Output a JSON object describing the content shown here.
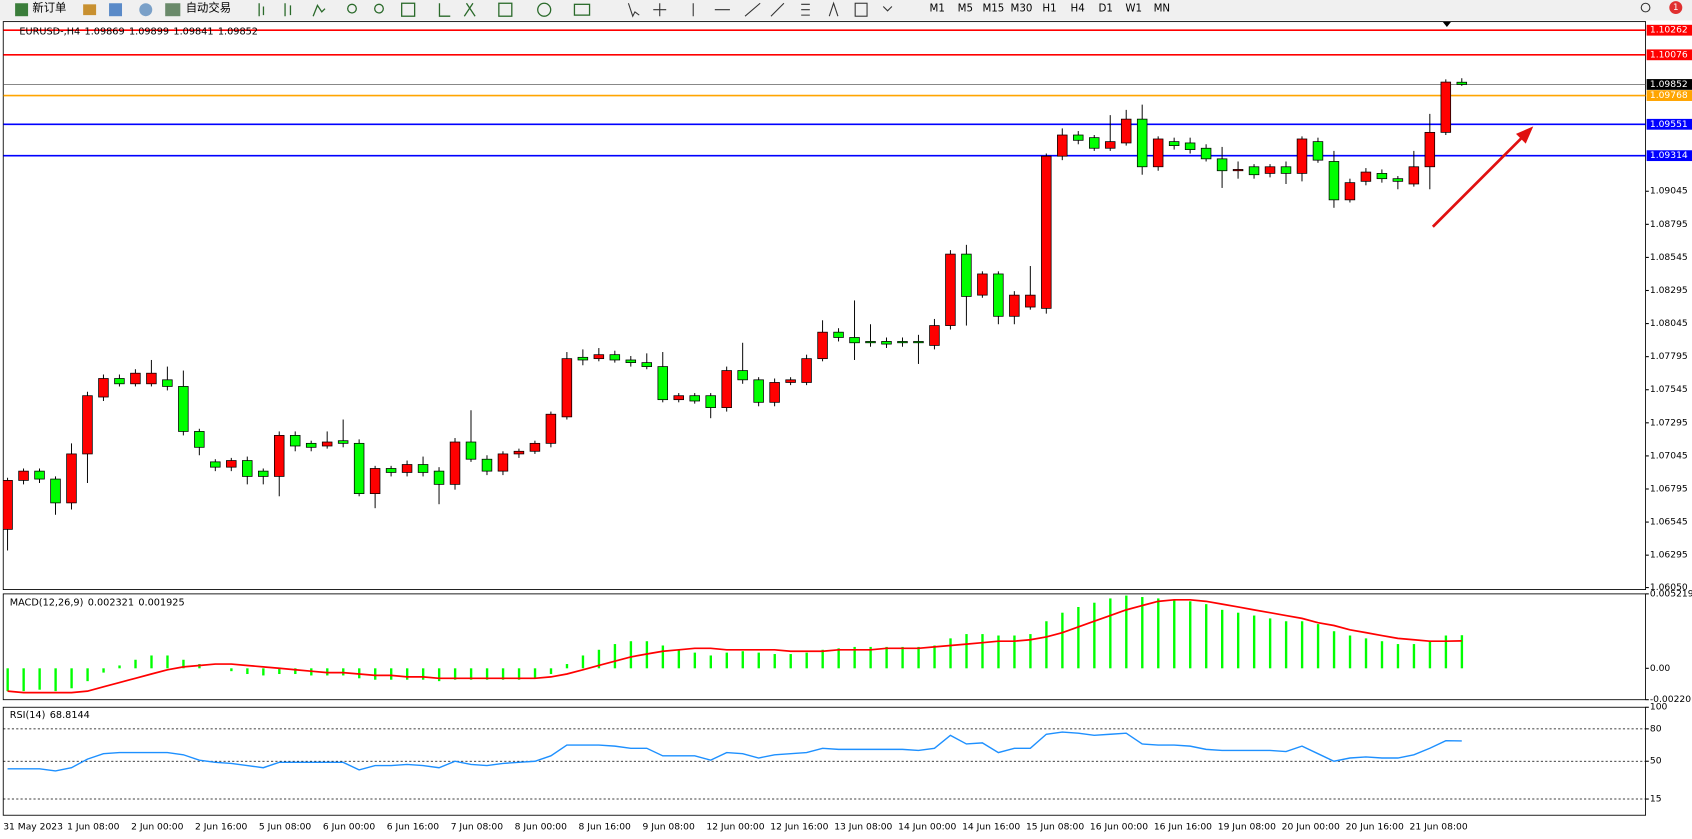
{
  "toolbar": {
    "new_order": "新订单",
    "auto_trading": "自动交易",
    "timeframes": [
      "M1",
      "M5",
      "M15",
      "M30",
      "H1",
      "H4",
      "D1",
      "W1",
      "MN"
    ],
    "notifications": "1"
  },
  "chart_data": [
    {
      "type": "candlestick",
      "title": "EURUSD-,H4",
      "ohlc": [
        1.09869,
        1.09899,
        1.09841,
        1.09852
      ],
      "up_color": "#ff0000",
      "down_color": "#00ff00",
      "categories": [
        "31 May 2023",
        null,
        null,
        null,
        "1 Jun 08:00",
        null,
        null,
        null,
        "2 Jun 00:00",
        null,
        null,
        null,
        "2 Jun 16:00",
        null,
        null,
        null,
        "5 Jun 08:00",
        null,
        null,
        null,
        "6 Jun 00:00",
        null,
        null,
        null,
        "6 Jun 16:00",
        null,
        null,
        null,
        "7 Jun 08:00",
        null,
        null,
        null,
        "8 Jun 00:00",
        null,
        null,
        null,
        "8 Jun 16:00",
        null,
        null,
        null,
        "9 Jun 08:00",
        null,
        null,
        null,
        "12 Jun 00:00",
        null,
        null,
        null,
        "12 Jun 16:00",
        null,
        null,
        null,
        "13 Jun 08:00",
        null,
        null,
        null,
        "14 Jun 00:00",
        null,
        null,
        null,
        "14 Jun 16:00",
        null,
        null,
        null,
        "15 Jun 08:00",
        null,
        null,
        null,
        "16 Jun 00:00",
        null,
        null,
        null,
        "16 Jun 16:00",
        null,
        null,
        null,
        "19 Jun 08:00",
        null,
        null,
        null,
        "20 Jun 00:00",
        null,
        null,
        null,
        "20 Jun 16:00",
        null,
        null,
        null,
        "21 Jun 08:00",
        null,
        null,
        null
      ],
      "open": [
        1.0649,
        1.0686,
        1.0693,
        1.0687,
        1.0669,
        1.0706,
        1.0749,
        1.0763,
        1.0759,
        1.0759,
        1.0762,
        1.0757,
        1.0723,
        1.07,
        1.0696,
        1.0701,
        1.0693,
        1.0689,
        1.072,
        1.0714,
        1.0712,
        1.0716,
        1.0714,
        1.0676,
        1.0695,
        1.0692,
        1.0698,
        1.0693,
        1.0683,
        1.0715,
        1.0702,
        1.0693,
        1.0706,
        1.0708,
        1.0714,
        1.0734,
        1.0779,
        1.0778,
        1.0781,
        1.0777,
        1.0775,
        1.0772,
        1.0747,
        1.075,
        1.075,
        1.0741,
        1.0769,
        1.0762,
        1.0745,
        1.076,
        1.076,
        1.0778,
        1.0798,
        1.0794,
        1.0791,
        1.0791,
        1.0791,
        1.0791,
        1.0788,
        1.0803,
        1.0857,
        1.0826,
        1.0842,
        1.081,
        1.0817,
        1.0816,
        1.0931,
        1.0947,
        1.0945,
        1.0937,
        1.0941,
        1.0959,
        1.0923,
        1.0942,
        1.0941,
        1.0937,
        1.0929,
        1.092,
        1.0923,
        1.0918,
        1.0923,
        1.0918,
        1.0942,
        1.0927,
        1.0898,
        1.0912,
        1.0918,
        1.0914,
        1.091,
        1.0923,
        1.0949,
        1.09869
      ],
      "high": [
        1.0688,
        1.0695,
        1.0695,
        1.0689,
        1.0714,
        1.0753,
        1.0766,
        1.0766,
        1.077,
        1.0777,
        1.0772,
        1.0769,
        1.0725,
        1.0702,
        1.0703,
        1.0704,
        1.0695,
        1.0723,
        1.0723,
        1.0716,
        1.0723,
        1.0732,
        1.0717,
        1.0697,
        1.0697,
        1.0701,
        1.0704,
        1.0696,
        1.0718,
        1.0739,
        1.0705,
        1.0708,
        1.071,
        1.0716,
        1.0738,
        1.0783,
        1.0785,
        1.0786,
        1.0784,
        1.078,
        1.0782,
        1.0783,
        1.0752,
        1.0752,
        1.0752,
        1.0772,
        1.079,
        1.0764,
        1.0763,
        1.0764,
        1.0781,
        1.0807,
        1.0801,
        1.0822,
        1.0804,
        1.0794,
        1.0794,
        1.0796,
        1.0808,
        1.086,
        1.0864,
        1.0844,
        1.0844,
        1.0829,
        1.0848,
        1.0933,
        1.0952,
        1.095,
        1.0947,
        1.0962,
        1.0966,
        1.097,
        1.0946,
        1.0945,
        1.0945,
        1.094,
        1.0938,
        1.0927,
        1.0925,
        1.0925,
        1.0927,
        1.0946,
        1.0945,
        1.0935,
        1.0914,
        1.0922,
        1.0921,
        1.0916,
        1.0935,
        1.0963,
        1.0989,
        1.09899
      ],
      "low": [
        1.0633,
        1.0683,
        1.0684,
        1.066,
        1.0664,
        1.0684,
        1.0746,
        1.0757,
        1.0757,
        1.0757,
        1.0754,
        1.072,
        1.0705,
        1.0693,
        1.0693,
        1.0683,
        1.0683,
        1.0674,
        1.0708,
        1.0708,
        1.071,
        1.0711,
        1.0674,
        1.0665,
        1.0689,
        1.0689,
        1.0689,
        1.0668,
        1.0679,
        1.07,
        1.069,
        1.069,
        1.0703,
        1.0706,
        1.0711,
        1.0732,
        1.0773,
        1.0776,
        1.0775,
        1.0772,
        1.077,
        1.0745,
        1.0745,
        1.0744,
        1.0733,
        1.0738,
        1.0759,
        1.0742,
        1.0742,
        1.0758,
        1.0758,
        1.0776,
        1.0791,
        1.0777,
        1.0787,
        1.0786,
        1.0787,
        1.0774,
        1.0785,
        1.08,
        1.0803,
        1.0824,
        1.0804,
        1.0804,
        1.0815,
        1.0812,
        1.0928,
        1.094,
        1.0935,
        1.0935,
        1.0939,
        1.0917,
        1.092,
        1.0936,
        1.0933,
        1.0927,
        1.0907,
        1.0914,
        1.0914,
        1.0915,
        1.091,
        1.0912,
        1.0926,
        1.0892,
        1.0896,
        1.0909,
        1.0911,
        1.0906,
        1.0908,
        1.0906,
        1.0947,
        1.09841
      ],
      "close": [
        1.0686,
        1.0693,
        1.0687,
        1.0669,
        1.0706,
        1.075,
        1.0763,
        1.0759,
        1.0767,
        1.0767,
        1.0757,
        1.0723,
        1.0711,
        1.0696,
        1.0701,
        1.0689,
        1.0689,
        1.072,
        1.0712,
        1.0711,
        1.0715,
        1.0714,
        1.0676,
        1.0695,
        1.0692,
        1.0698,
        1.0692,
        1.0683,
        1.0715,
        1.0702,
        1.0693,
        1.0706,
        1.0708,
        1.0714,
        1.0736,
        1.0778,
        1.0777,
        1.0781,
        1.0777,
        1.0775,
        1.0772,
        1.0747,
        1.075,
        1.0746,
        1.0741,
        1.0769,
        1.0762,
        1.0745,
        1.076,
        1.0762,
        1.0778,
        1.0798,
        1.0794,
        1.079,
        1.079,
        1.0789,
        1.079,
        1.079,
        1.0803,
        1.0857,
        1.0825,
        1.0842,
        1.081,
        1.0826,
        1.0826,
        1.0931,
        1.0947,
        1.0943,
        1.0937,
        1.0942,
        1.0959,
        1.0923,
        1.0944,
        1.0939,
        1.0936,
        1.0929,
        1.092,
        1.0921,
        1.0917,
        1.0923,
        1.0918,
        1.0944,
        1.0928,
        1.0898,
        1.0911,
        1.0919,
        1.0914,
        1.0912,
        1.0923,
        1.0949,
        1.0987,
        1.09852
      ],
      "hlines": [
        {
          "value": 1.10262,
          "color": "#ff0000"
        },
        {
          "value": 1.10076,
          "color": "#ff0000"
        },
        {
          "value": 1.09768,
          "color": "#ffa500"
        },
        {
          "value": 1.09551,
          "color": "#0000ff"
        },
        {
          "value": 1.09314,
          "color": "#0000ff"
        }
      ],
      "ylim": [
        1.06035,
        1.10327
      ],
      "yticks": [
        {
          "value": 1.0605,
          "label": "1.06050"
        },
        1.06295,
        1.06545,
        1.06795,
        1.07045,
        1.07295,
        1.07545,
        1.07795,
        1.08045,
        1.08295,
        1.08545,
        1.08795,
        1.09045
      ]
    },
    {
      "type": "macd",
      "title": "MACD(12,26,9)",
      "indicator_values": [
        0.002321,
        0.001925
      ],
      "series": [
        {
          "color": "#00ff00",
          "values": [
            -0.0016,
            -0.0016,
            -0.0015,
            -0.0016,
            -0.0014,
            -0.0009,
            -0.0003,
            0.0002,
            0.0006,
            0.0009,
            0.0009,
            0.0006,
            0.0003,
            0.0,
            -0.0002,
            -0.0004,
            -0.0005,
            -0.0004,
            -0.0004,
            -0.0005,
            -0.0005,
            -0.0005,
            -0.0007,
            -0.0008,
            -0.0008,
            -0.0008,
            -0.0008,
            -0.0009,
            -0.0008,
            -0.0008,
            -0.0008,
            -0.0008,
            -0.0008,
            -0.0007,
            -0.0004,
            0.0003,
            0.0009,
            0.0013,
            0.0017,
            0.0019,
            0.0019,
            0.0016,
            0.0013,
            0.0011,
            0.0009,
            0.0011,
            0.0012,
            0.0011,
            0.001,
            0.001,
            0.0011,
            0.0013,
            0.0014,
            0.0015,
            0.0015,
            0.0015,
            0.0015,
            0.0015,
            0.0016,
            0.0021,
            0.0024,
            0.0024,
            0.0023,
            0.0023,
            0.0024,
            0.0033,
            0.0039,
            0.0043,
            0.0046,
            0.0049,
            0.0051,
            0.005,
            0.0049,
            0.0048,
            0.0047,
            0.0045,
            0.0041,
            0.0039,
            0.0037,
            0.0035,
            0.0033,
            0.0033,
            0.0031,
            0.0026,
            0.0023,
            0.0021,
            0.0019,
            0.0017,
            0.0017,
            0.0019,
            0.0023,
            0.002321
          ]
        },
        {
          "color": "#ff0000",
          "values": [
            -0.0016,
            -0.0017,
            -0.0017,
            -0.0017,
            -0.0017,
            -0.0016,
            -0.0013,
            -0.001,
            -0.0007,
            -0.0004,
            -0.0001,
            0.0001,
            0.0002,
            0.0003,
            0.0003,
            0.0002,
            0.0001,
            0.0,
            -0.0001,
            -0.0002,
            -0.0003,
            -0.0003,
            -0.0004,
            -0.0005,
            -0.0005,
            -0.0006,
            -0.0006,
            -0.0007,
            -0.0007,
            -0.0007,
            -0.0007,
            -0.0007,
            -0.0007,
            -0.0007,
            -0.0006,
            -0.0004,
            -0.0001,
            0.0002,
            0.0005,
            0.0008,
            0.001,
            0.0012,
            0.0013,
            0.0014,
            0.0014,
            0.0013,
            0.0013,
            0.0013,
            0.0013,
            0.0012,
            0.0012,
            0.0012,
            0.0013,
            0.0013,
            0.0013,
            0.0014,
            0.0014,
            0.0014,
            0.0015,
            0.0016,
            0.0017,
            0.0018,
            0.0019,
            0.0019,
            0.002,
            0.0022,
            0.0025,
            0.0029,
            0.0033,
            0.0037,
            0.0041,
            0.0044,
            0.0047,
            0.0048,
            0.0048,
            0.0047,
            0.0045,
            0.0043,
            0.0041,
            0.0039,
            0.0037,
            0.0035,
            0.0032,
            0.003,
            0.0027,
            0.0025,
            0.0023,
            0.0021,
            0.002,
            0.0019,
            0.0019,
            0.001925
          ]
        }
      ],
      "ylim": [
        -0.002201,
        0.005219
      ],
      "yticks": [
        0.005219,
        {
          "value": 0,
          "label": "0.00"
        },
        -0.002201
      ]
    },
    {
      "type": "line",
      "title": "RSI(14)",
      "indicator_values": [
        68.8144
      ],
      "series": [
        {
          "color": "#1e90ff",
          "values": [
            43,
            43,
            43,
            41,
            44,
            52,
            57,
            58,
            58,
            58,
            58,
            56,
            51,
            49,
            48,
            46,
            44,
            49,
            49,
            49,
            49,
            49,
            42,
            46,
            46,
            47,
            46,
            44,
            50,
            47,
            46,
            48,
            49,
            50,
            55,
            65,
            65,
            65,
            64,
            62,
            62,
            55,
            55,
            55,
            51,
            58,
            57,
            53,
            56,
            57,
            58,
            62,
            61,
            61,
            61,
            61,
            61,
            60,
            62,
            74,
            66,
            67,
            58,
            62,
            62,
            75,
            77,
            76,
            74,
            75,
            76,
            66,
            65,
            65,
            64,
            61,
            60,
            60,
            60,
            60,
            59,
            64,
            57,
            50,
            53,
            54,
            53,
            53,
            56,
            62,
            69,
            68.8144
          ]
        }
      ],
      "ylim": [
        0,
        100
      ],
      "yticks": [
        100,
        80,
        50,
        15
      ],
      "level_lines": true
    }
  ]
}
